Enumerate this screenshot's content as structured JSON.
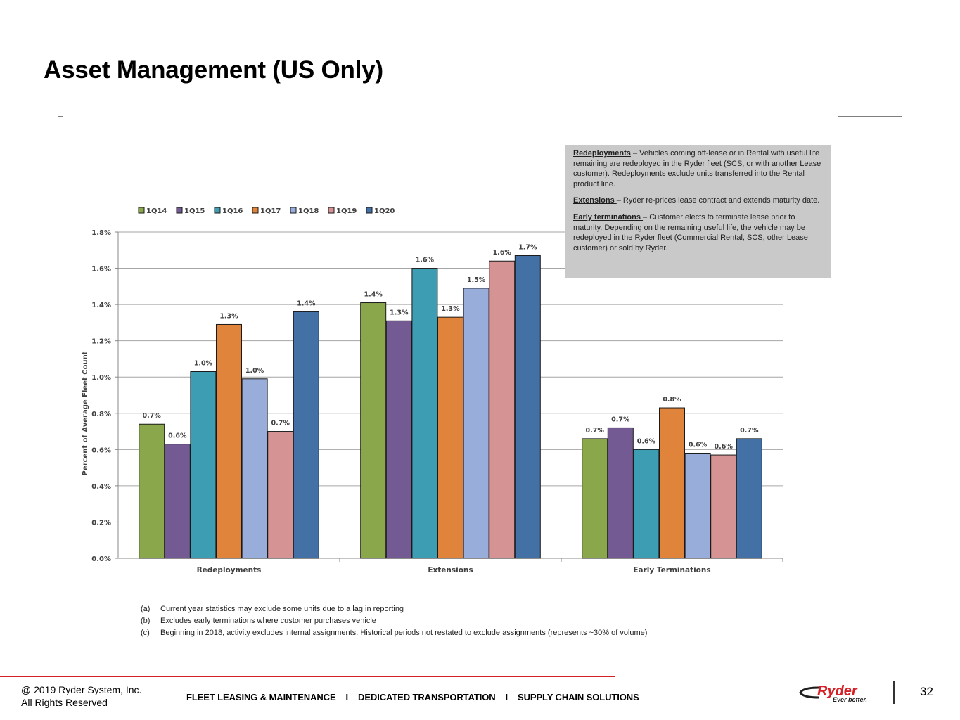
{
  "title": "Asset Management (US Only)",
  "chart_data": {
    "type": "bar",
    "categories": [
      "Redeployments",
      "Extensions",
      "Early Terminations"
    ],
    "series": [
      {
        "name": "1Q14",
        "color": "#8aa84b",
        "values": [
          0.74,
          1.41,
          0.66
        ],
        "labels": [
          "0.7%",
          "1.4%",
          "0.7%"
        ]
      },
      {
        "name": "1Q15",
        "color": "#745a93",
        "values": [
          0.63,
          1.31,
          0.72
        ],
        "labels": [
          "0.6%",
          "1.3%",
          "0.7%"
        ]
      },
      {
        "name": "1Q16",
        "color": "#3c9db3",
        "values": [
          1.03,
          1.6,
          0.6
        ],
        "labels": [
          "1.0%",
          "1.6%",
          "0.6%"
        ]
      },
      {
        "name": "1Q17",
        "color": "#e0843b",
        "values": [
          1.29,
          1.33,
          0.83
        ],
        "labels": [
          "1.3%",
          "1.3%",
          "0.8%"
        ]
      },
      {
        "name": "1Q18",
        "color": "#98adda",
        "values": [
          0.99,
          1.49,
          0.58
        ],
        "labels": [
          "1.0%",
          "1.5%",
          "0.6%"
        ]
      },
      {
        "name": "1Q19",
        "color": "#d69394",
        "values": [
          0.7,
          1.64,
          0.57
        ],
        "labels": [
          "0.7%",
          "1.6%",
          "0.6%"
        ]
      },
      {
        "name": "1Q20",
        "color": "#4371a6",
        "values": [
          1.36,
          1.67,
          0.66
        ],
        "labels": [
          "1.4%",
          "1.7%",
          "0.7%"
        ]
      }
    ],
    "ylabel": "Percent of Average Fleet Count",
    "ylim": [
      0,
      1.8
    ],
    "yticks": [
      "0.0%",
      "0.2%",
      "0.4%",
      "0.6%",
      "0.8%",
      "1.0%",
      "1.2%",
      "1.4%",
      "1.6%",
      "1.8%"
    ],
    "grid": true,
    "legend_position": "top"
  },
  "info_box": {
    "redeployments_term": "Redeployments",
    "redeployments_text": " – Vehicles coming off-lease or in Rental with useful life remaining are redeployed in the Ryder fleet (SCS, or with another Lease customer). Redeployments exclude units transferred into  the Rental product line.",
    "extensions_term": "Extensions ",
    "extensions_text": "– Ryder re-prices lease contract and extends maturity date.",
    "early_term": "Early terminations ",
    "early_text": "– Customer elects to terminate lease prior to maturity. Depending on the remaining useful life, the vehicle may be redeployed in the Ryder fleet (Commercial Rental, SCS, other Lease customer) or sold by Ryder."
  },
  "notes": [
    {
      "mark": "(a)",
      "text": "Current year statistics may exclude some units due to a lag in reporting"
    },
    {
      "mark": "(b)",
      "text": "Excludes early terminations where customer purchases vehicle"
    },
    {
      "mark": "(c)",
      "text": "Beginning in 2018, activity excludes internal assignments.  Historical periods not restated to exclude assignments (represents ~30% of volume)"
    }
  ],
  "footer": {
    "copyright_line1": "@ 2019 Ryder System, Inc.",
    "copyright_line2": "All Rights Reserved",
    "nav": [
      "FLEET LEASING & MAINTENANCE",
      "DEDICATED TRANSPORTATION",
      "SUPPLY CHAIN SOLUTIONS"
    ],
    "nav_separator": "I",
    "logo_word": "Ryder",
    "logo_tagline": "Ever better.",
    "page_number": "32"
  },
  "colors": {
    "accent_red": "#d62027",
    "info_box_bg": "#c9c9c9"
  }
}
